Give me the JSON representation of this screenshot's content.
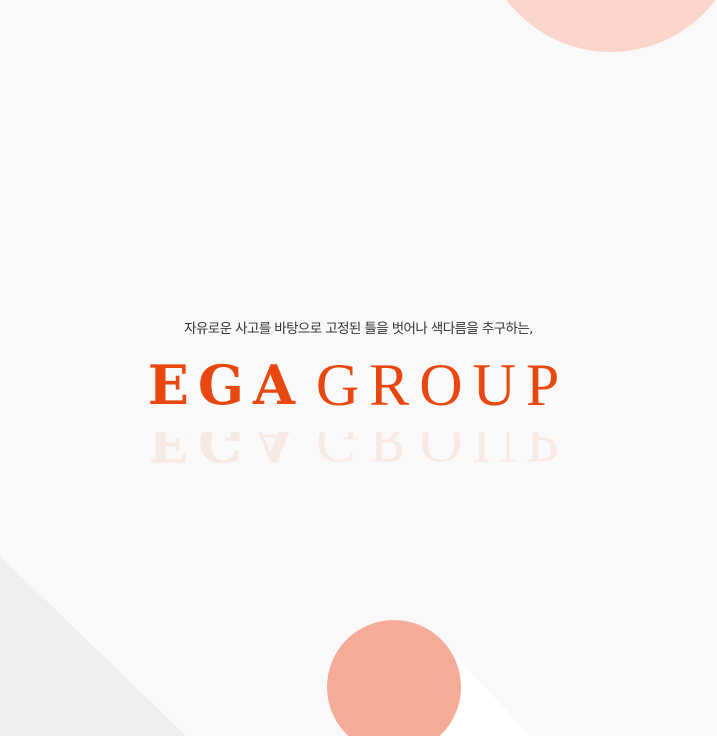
{
  "tagline": "자유로운 사고를 바탕으로 고정된 틀을 벗어나 색다름을 추구하는,",
  "logo": {
    "ega": "EGA",
    "group": "GROUP"
  },
  "colors": {
    "background": "#f9f9f9",
    "brand_orange": "#e8470f",
    "top_circle": "#fad5cb",
    "bottom_circle": "#f4ac98",
    "triangle": "#efefef",
    "tagline_text": "#333333"
  },
  "decorations": [
    "top-circle",
    "left-triangle",
    "bottom-circle",
    "logo-reflection"
  ]
}
